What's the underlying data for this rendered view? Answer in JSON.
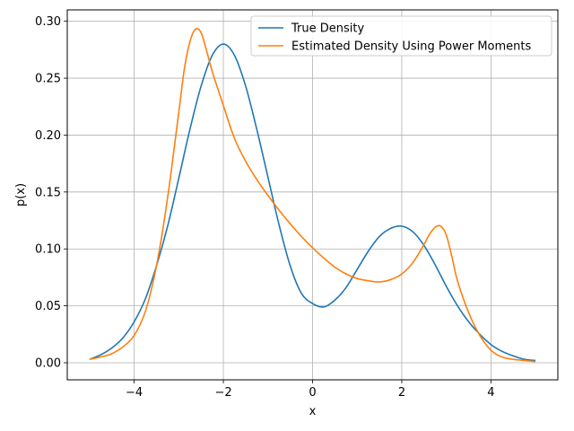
{
  "chart_data": {
    "type": "line",
    "title": "",
    "xlabel": "x",
    "ylabel": "p(x)",
    "xlim": [
      -5.5,
      5.5
    ],
    "ylim": [
      -0.015,
      0.31
    ],
    "xticks": [
      -4,
      -2,
      0,
      2,
      4
    ],
    "xtick_labels": [
      "−4",
      "−2",
      "0",
      "2",
      "4"
    ],
    "yticks": [
      0.0,
      0.05,
      0.1,
      0.15,
      0.2,
      0.25,
      0.3
    ],
    "ytick_labels": [
      "0.00",
      "0.05",
      "0.10",
      "0.15",
      "0.20",
      "0.25",
      "0.30"
    ],
    "grid": true,
    "legend_position": "top-right",
    "series": [
      {
        "name": "True Density",
        "color": "#1f77b4",
        "x": [
          -5.0,
          -4.75,
          -4.5,
          -4.25,
          -4.0,
          -3.75,
          -3.5,
          -3.25,
          -3.0,
          -2.75,
          -2.5,
          -2.25,
          -2.0,
          -1.75,
          -1.5,
          -1.25,
          -1.0,
          -0.75,
          -0.5,
          -0.25,
          0.0,
          0.25,
          0.5,
          0.75,
          1.0,
          1.25,
          1.5,
          1.75,
          2.0,
          2.25,
          2.5,
          2.75,
          3.0,
          3.25,
          3.5,
          3.75,
          4.0,
          4.25,
          4.5,
          4.75,
          5.0
        ],
        "y": [
          0.003,
          0.007,
          0.013,
          0.022,
          0.036,
          0.056,
          0.085,
          0.12,
          0.162,
          0.205,
          0.243,
          0.27,
          0.28,
          0.27,
          0.243,
          0.205,
          0.163,
          0.121,
          0.085,
          0.061,
          0.052,
          0.049,
          0.055,
          0.066,
          0.082,
          0.098,
          0.111,
          0.118,
          0.12,
          0.115,
          0.103,
          0.086,
          0.067,
          0.05,
          0.036,
          0.025,
          0.016,
          0.01,
          0.006,
          0.003,
          0.002
        ]
      },
      {
        "name": "Estimated Density Using Power Moments",
        "color": "#ff7f0e",
        "x": [
          -5.0,
          -4.75,
          -4.5,
          -4.25,
          -4.0,
          -3.75,
          -3.5,
          -3.25,
          -3.0,
          -2.875,
          -2.75,
          -2.625,
          -2.5,
          -2.375,
          -2.25,
          -2.0,
          -1.75,
          -1.5,
          -1.25,
          -1.0,
          -0.75,
          -0.5,
          -0.25,
          0.0,
          0.25,
          0.5,
          0.75,
          1.0,
          1.25,
          1.5,
          1.75,
          2.0,
          2.25,
          2.5,
          2.625,
          2.75,
          2.875,
          3.0,
          3.125,
          3.25,
          3.5,
          3.75,
          4.0,
          4.25,
          4.5,
          4.75,
          5.0
        ],
        "y": [
          0.003,
          0.005,
          0.008,
          0.014,
          0.024,
          0.045,
          0.085,
          0.145,
          0.22,
          0.258,
          0.282,
          0.293,
          0.29,
          0.274,
          0.256,
          0.226,
          0.197,
          0.177,
          0.161,
          0.147,
          0.134,
          0.122,
          0.111,
          0.101,
          0.092,
          0.084,
          0.078,
          0.074,
          0.072,
          0.071,
          0.073,
          0.078,
          0.088,
          0.104,
          0.113,
          0.119,
          0.12,
          0.112,
          0.093,
          0.072,
          0.044,
          0.024,
          0.011,
          0.005,
          0.003,
          0.002,
          0.001
        ]
      }
    ]
  }
}
